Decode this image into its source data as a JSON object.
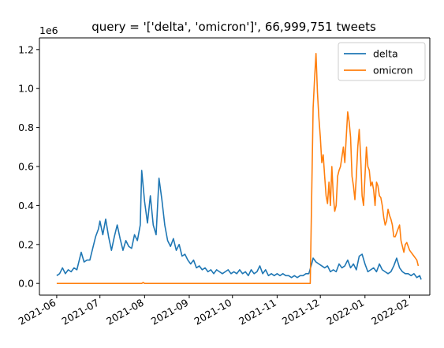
{
  "chart_data": {
    "type": "line",
    "title": "query = '['delta', 'omicron']', 66,999,751 tweets",
    "xlabel": "",
    "ylabel": "",
    "y_offset_text": "1e6",
    "y_scale": 1000000,
    "xlim": [
      "2021-05-20",
      "2022-02-15"
    ],
    "ylim": [
      -0.06,
      1.26
    ],
    "x_ticks": [
      {
        "date": "2021-06-01",
        "label": "2021-06"
      },
      {
        "date": "2021-07-01",
        "label": "2021-07"
      },
      {
        "date": "2021-08-01",
        "label": "2021-08"
      },
      {
        "date": "2021-09-01",
        "label": "2021-09"
      },
      {
        "date": "2021-10-01",
        "label": "2021-10"
      },
      {
        "date": "2021-11-01",
        "label": "2021-11"
      },
      {
        "date": "2021-12-01",
        "label": "2021-12"
      },
      {
        "date": "2022-01-01",
        "label": "2022-01"
      },
      {
        "date": "2022-02-01",
        "label": "2022-02"
      }
    ],
    "y_ticks": [
      {
        "value": 0.0,
        "label": "0.0"
      },
      {
        "value": 0.2,
        "label": "0.2"
      },
      {
        "value": 0.4,
        "label": "0.4"
      },
      {
        "value": 0.6,
        "label": "0.6"
      },
      {
        "value": 0.8,
        "label": "0.8"
      },
      {
        "value": 1.0,
        "label": "1.0"
      },
      {
        "value": 1.2,
        "label": "1.2"
      }
    ],
    "grid": false,
    "legend_position": "top-right",
    "series": [
      {
        "name": "delta",
        "color": "#1f77b4",
        "points": [
          [
            "2021-06-01",
            0.04
          ],
          [
            "2021-06-03",
            0.05
          ],
          [
            "2021-06-05",
            0.08
          ],
          [
            "2021-06-07",
            0.05
          ],
          [
            "2021-06-09",
            0.07
          ],
          [
            "2021-06-11",
            0.06
          ],
          [
            "2021-06-13",
            0.08
          ],
          [
            "2021-06-15",
            0.07
          ],
          [
            "2021-06-16",
            0.1
          ],
          [
            "2021-06-18",
            0.16
          ],
          [
            "2021-06-20",
            0.11
          ],
          [
            "2021-06-22",
            0.12
          ],
          [
            "2021-06-24",
            0.12
          ],
          [
            "2021-06-26",
            0.18
          ],
          [
            "2021-06-28",
            0.24
          ],
          [
            "2021-06-30",
            0.28
          ],
          [
            "2021-07-01",
            0.32
          ],
          [
            "2021-07-03",
            0.25
          ],
          [
            "2021-07-05",
            0.33
          ],
          [
            "2021-07-07",
            0.24
          ],
          [
            "2021-07-09",
            0.17
          ],
          [
            "2021-07-11",
            0.24
          ],
          [
            "2021-07-13",
            0.3
          ],
          [
            "2021-07-15",
            0.23
          ],
          [
            "2021-07-17",
            0.17
          ],
          [
            "2021-07-19",
            0.22
          ],
          [
            "2021-07-21",
            0.19
          ],
          [
            "2021-07-23",
            0.18
          ],
          [
            "2021-07-25",
            0.25
          ],
          [
            "2021-07-27",
            0.22
          ],
          [
            "2021-07-29",
            0.3
          ],
          [
            "2021-07-30",
            0.58
          ],
          [
            "2021-08-01",
            0.42
          ],
          [
            "2021-08-03",
            0.31
          ],
          [
            "2021-08-05",
            0.45
          ],
          [
            "2021-08-07",
            0.3
          ],
          [
            "2021-08-09",
            0.25
          ],
          [
            "2021-08-11",
            0.54
          ],
          [
            "2021-08-13",
            0.43
          ],
          [
            "2021-08-15",
            0.3
          ],
          [
            "2021-08-17",
            0.22
          ],
          [
            "2021-08-19",
            0.19
          ],
          [
            "2021-08-21",
            0.23
          ],
          [
            "2021-08-23",
            0.17
          ],
          [
            "2021-08-25",
            0.2
          ],
          [
            "2021-08-27",
            0.14
          ],
          [
            "2021-08-29",
            0.15
          ],
          [
            "2021-08-31",
            0.12
          ],
          [
            "2021-09-02",
            0.1
          ],
          [
            "2021-09-04",
            0.12
          ],
          [
            "2021-09-06",
            0.08
          ],
          [
            "2021-09-08",
            0.09
          ],
          [
            "2021-09-10",
            0.07
          ],
          [
            "2021-09-12",
            0.08
          ],
          [
            "2021-09-14",
            0.06
          ],
          [
            "2021-09-16",
            0.07
          ],
          [
            "2021-09-18",
            0.05
          ],
          [
            "2021-09-20",
            0.07
          ],
          [
            "2021-09-22",
            0.06
          ],
          [
            "2021-09-24",
            0.05
          ],
          [
            "2021-09-26",
            0.06
          ],
          [
            "2021-09-28",
            0.07
          ],
          [
            "2021-09-30",
            0.05
          ],
          [
            "2021-10-02",
            0.06
          ],
          [
            "2021-10-04",
            0.05
          ],
          [
            "2021-10-06",
            0.07
          ],
          [
            "2021-10-08",
            0.05
          ],
          [
            "2021-10-10",
            0.06
          ],
          [
            "2021-10-12",
            0.04
          ],
          [
            "2021-10-14",
            0.07
          ],
          [
            "2021-10-16",
            0.05
          ],
          [
            "2021-10-18",
            0.06
          ],
          [
            "2021-10-20",
            0.09
          ],
          [
            "2021-10-22",
            0.05
          ],
          [
            "2021-10-24",
            0.07
          ],
          [
            "2021-10-26",
            0.04
          ],
          [
            "2021-10-28",
            0.05
          ],
          [
            "2021-10-30",
            0.04
          ],
          [
            "2021-11-01",
            0.05
          ],
          [
            "2021-11-03",
            0.04
          ],
          [
            "2021-11-05",
            0.05
          ],
          [
            "2021-11-07",
            0.04
          ],
          [
            "2021-11-09",
            0.04
          ],
          [
            "2021-11-11",
            0.03
          ],
          [
            "2021-11-13",
            0.04
          ],
          [
            "2021-11-15",
            0.03
          ],
          [
            "2021-11-17",
            0.04
          ],
          [
            "2021-11-19",
            0.04
          ],
          [
            "2021-11-21",
            0.05
          ],
          [
            "2021-11-23",
            0.05
          ],
          [
            "2021-11-25",
            0.1
          ],
          [
            "2021-11-26",
            0.13
          ],
          [
            "2021-11-28",
            0.11
          ],
          [
            "2021-11-30",
            0.1
          ],
          [
            "2021-12-02",
            0.09
          ],
          [
            "2021-12-04",
            0.08
          ],
          [
            "2021-12-06",
            0.09
          ],
          [
            "2021-12-08",
            0.06
          ],
          [
            "2021-12-10",
            0.07
          ],
          [
            "2021-12-12",
            0.06
          ],
          [
            "2021-12-14",
            0.1
          ],
          [
            "2021-12-16",
            0.08
          ],
          [
            "2021-12-18",
            0.09
          ],
          [
            "2021-12-20",
            0.12
          ],
          [
            "2021-12-22",
            0.08
          ],
          [
            "2021-12-24",
            0.1
          ],
          [
            "2021-12-26",
            0.07
          ],
          [
            "2021-12-28",
            0.14
          ],
          [
            "2021-12-30",
            0.15
          ],
          [
            "2022-01-01",
            0.1
          ],
          [
            "2022-01-03",
            0.06
          ],
          [
            "2022-01-05",
            0.07
          ],
          [
            "2022-01-07",
            0.08
          ],
          [
            "2022-01-09",
            0.06
          ],
          [
            "2022-01-11",
            0.1
          ],
          [
            "2022-01-13",
            0.07
          ],
          [
            "2022-01-15",
            0.06
          ],
          [
            "2022-01-17",
            0.05
          ],
          [
            "2022-01-19",
            0.06
          ],
          [
            "2022-01-21",
            0.09
          ],
          [
            "2022-01-23",
            0.13
          ],
          [
            "2022-01-25",
            0.08
          ],
          [
            "2022-01-27",
            0.06
          ],
          [
            "2022-01-29",
            0.05
          ],
          [
            "2022-01-31",
            0.05
          ],
          [
            "2022-02-02",
            0.04
          ],
          [
            "2022-02-04",
            0.05
          ],
          [
            "2022-02-06",
            0.03
          ],
          [
            "2022-02-08",
            0.04
          ],
          [
            "2022-02-09",
            0.02
          ]
        ]
      },
      {
        "name": "omicron",
        "color": "#ff7f0e",
        "points": [
          [
            "2021-06-01",
            0.0
          ],
          [
            "2021-07-30",
            0.0
          ],
          [
            "2021-07-31",
            0.005
          ],
          [
            "2021-08-01",
            0.0
          ],
          [
            "2021-11-24",
            0.0
          ],
          [
            "2021-11-26",
            0.9
          ],
          [
            "2021-11-27",
            1.05
          ],
          [
            "2021-11-28",
            1.18
          ],
          [
            "2021-11-29",
            0.98
          ],
          [
            "2021-11-30",
            0.85
          ],
          [
            "2021-12-01",
            0.75
          ],
          [
            "2021-12-02",
            0.62
          ],
          [
            "2021-12-03",
            0.66
          ],
          [
            "2021-12-04",
            0.55
          ],
          [
            "2021-12-05",
            0.45
          ],
          [
            "2021-12-06",
            0.41
          ],
          [
            "2021-12-07",
            0.52
          ],
          [
            "2021-12-08",
            0.4
          ],
          [
            "2021-12-09",
            0.6
          ],
          [
            "2021-12-10",
            0.45
          ],
          [
            "2021-12-11",
            0.37
          ],
          [
            "2021-12-12",
            0.4
          ],
          [
            "2021-12-13",
            0.55
          ],
          [
            "2021-12-14",
            0.58
          ],
          [
            "2021-12-15",
            0.6
          ],
          [
            "2021-12-16",
            0.65
          ],
          [
            "2021-12-17",
            0.7
          ],
          [
            "2021-12-18",
            0.62
          ],
          [
            "2021-12-19",
            0.75
          ],
          [
            "2021-12-20",
            0.88
          ],
          [
            "2021-12-21",
            0.83
          ],
          [
            "2021-12-22",
            0.75
          ],
          [
            "2021-12-23",
            0.55
          ],
          [
            "2021-12-24",
            0.5
          ],
          [
            "2021-12-25",
            0.43
          ],
          [
            "2021-12-26",
            0.55
          ],
          [
            "2021-12-27",
            0.7
          ],
          [
            "2021-12-28",
            0.79
          ],
          [
            "2021-12-29",
            0.65
          ],
          [
            "2021-12-30",
            0.45
          ],
          [
            "2021-12-31",
            0.4
          ],
          [
            "2022-01-01",
            0.55
          ],
          [
            "2022-01-02",
            0.7
          ],
          [
            "2022-01-03",
            0.6
          ],
          [
            "2022-01-04",
            0.58
          ],
          [
            "2022-01-05",
            0.5
          ],
          [
            "2022-01-06",
            0.52
          ],
          [
            "2022-01-07",
            0.48
          ],
          [
            "2022-01-08",
            0.4
          ],
          [
            "2022-01-09",
            0.52
          ],
          [
            "2022-01-10",
            0.5
          ],
          [
            "2022-01-11",
            0.45
          ],
          [
            "2022-01-12",
            0.44
          ],
          [
            "2022-01-13",
            0.4
          ],
          [
            "2022-01-14",
            0.34
          ],
          [
            "2022-01-15",
            0.3
          ],
          [
            "2022-01-16",
            0.32
          ],
          [
            "2022-01-17",
            0.38
          ],
          [
            "2022-01-18",
            0.35
          ],
          [
            "2022-01-19",
            0.33
          ],
          [
            "2022-01-20",
            0.3
          ],
          [
            "2022-01-21",
            0.24
          ],
          [
            "2022-01-22",
            0.24
          ],
          [
            "2022-01-23",
            0.26
          ],
          [
            "2022-01-24",
            0.28
          ],
          [
            "2022-01-25",
            0.3
          ],
          [
            "2022-01-26",
            0.22
          ],
          [
            "2022-01-27",
            0.19
          ],
          [
            "2022-01-28",
            0.16
          ],
          [
            "2022-01-29",
            0.2
          ],
          [
            "2022-01-30",
            0.21
          ],
          [
            "2022-01-31",
            0.19
          ],
          [
            "2022-02-01",
            0.17
          ],
          [
            "2022-02-02",
            0.16
          ],
          [
            "2022-02-03",
            0.15
          ],
          [
            "2022-02-04",
            0.14
          ],
          [
            "2022-02-05",
            0.13
          ],
          [
            "2022-02-06",
            0.12
          ],
          [
            "2022-02-07",
            0.09
          ]
        ]
      }
    ]
  }
}
